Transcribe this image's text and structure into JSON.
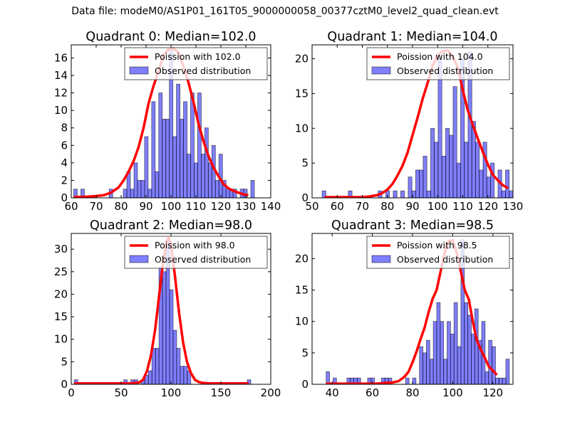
{
  "figure": {
    "suptitle": "Data file: modeM0/AS1P01_161T05_9000000058_00377cztM0_level2_quad_clean.evt"
  },
  "colors": {
    "bar_fill": "#0000ff",
    "bar_alpha": 0.5,
    "bar_edge": "#000000",
    "line": "#ff0000",
    "axes": "#000000",
    "legend_edge": "#555555"
  },
  "chart_data": [
    {
      "type": "bar",
      "title": "Quadrant 0: Median=102.0",
      "xlabel": "",
      "ylabel": "",
      "xlim": [
        60,
        140
      ],
      "ylim": [
        0,
        17.5
      ],
      "xticks": [
        60,
        70,
        80,
        90,
        100,
        110,
        120,
        130,
        140
      ],
      "yticks": [
        0,
        2,
        4,
        6,
        8,
        10,
        12,
        14,
        16
      ],
      "legend": {
        "position": "top-right",
        "entries": [
          "Poission with 102.0",
          "Observed distribution"
        ]
      },
      "grid": false,
      "histogram": {
        "name": "Observed distribution",
        "bin_start": 61,
        "bin_width": 1.42,
        "counts": [
          1,
          0,
          1,
          0,
          0,
          0,
          0,
          0,
          0,
          0,
          1,
          0,
          0,
          0,
          1,
          3,
          1,
          4,
          2,
          2,
          7,
          1,
          11,
          3,
          12,
          9,
          9,
          17,
          7,
          13,
          9,
          11,
          5,
          12,
          4,
          12,
          5,
          8,
          4,
          6,
          2,
          5,
          2,
          1,
          1,
          1,
          0,
          1,
          1,
          0,
          2
        ]
      },
      "poisson": {
        "name": "Poission with 102.0",
        "mean": 102.0,
        "x": [
          61,
          64,
          67,
          70,
          73,
          76,
          79,
          81,
          83,
          85,
          87,
          89,
          91,
          93,
          95,
          97,
          99,
          101,
          103,
          105,
          107,
          109,
          111,
          113,
          115,
          117,
          119,
          121,
          123,
          125,
          127,
          129,
          131
        ],
        "y": [
          0.1,
          0.1,
          0.15,
          0.2,
          0.3,
          0.6,
          1.2,
          2.0,
          3.0,
          4.2,
          5.8,
          8.0,
          10.8,
          12.8,
          14.5,
          16.3,
          17.0,
          17.1,
          16.6,
          15.0,
          13.2,
          11.0,
          8.5,
          6.5,
          4.8,
          3.5,
          2.5,
          1.6,
          1.1,
          0.8,
          0.6,
          0.4,
          0.3
        ]
      }
    },
    {
      "type": "bar",
      "title": "Quadrant 1: Median=104.0",
      "xlabel": "",
      "ylabel": "",
      "xlim": [
        50,
        130
      ],
      "ylim": [
        0,
        22
      ],
      "xticks": [
        50,
        60,
        70,
        80,
        90,
        100,
        110,
        120,
        130
      ],
      "yticks": [
        0,
        5,
        10,
        15,
        20
      ],
      "legend": {
        "position": "top-right",
        "entries": [
          "Poission with 104.0",
          "Observed distribution"
        ]
      },
      "grid": false,
      "histogram": {
        "name": "Observed distribution",
        "bin_start": 54,
        "bin_width": 1.49,
        "counts": [
          1,
          0,
          0,
          0,
          0,
          0,
          0,
          1,
          0,
          0,
          0,
          0,
          0,
          0,
          0,
          1,
          0,
          1,
          0,
          1,
          0,
          1,
          0,
          3,
          1,
          4,
          4,
          6,
          1,
          10,
          8,
          20,
          6,
          10,
          9,
          16,
          5,
          20,
          8,
          21,
          11,
          8,
          4,
          8,
          3,
          5,
          0,
          4,
          1,
          4,
          1,
          1
        ]
      },
      "poisson": {
        "name": "Poission with 104.0",
        "mean": 104.0,
        "x": [
          55,
          60,
          65,
          70,
          73,
          76,
          78,
          80,
          82,
          84,
          86,
          88,
          90,
          92,
          94,
          96,
          98,
          100,
          102,
          104,
          106,
          108,
          110,
          112,
          114,
          116,
          118,
          120,
          122,
          124,
          126,
          128
        ],
        "y": [
          0.1,
          0.1,
          0.1,
          0.1,
          0.2,
          0.4,
          0.7,
          1.2,
          2.0,
          3.2,
          4.6,
          6.5,
          9.0,
          11.5,
          14.2,
          16.5,
          19.0,
          20.5,
          21.1,
          21.2,
          20.3,
          18.8,
          15.5,
          12.6,
          10.5,
          8.5,
          6.6,
          4.8,
          3.3,
          2.5,
          1.8,
          1.4
        ]
      }
    },
    {
      "type": "bar",
      "title": "Quadrant 2: Median=98.0",
      "xlabel": "",
      "ylabel": "",
      "xlim": [
        0,
        200
      ],
      "ylim": [
        0,
        33.5
      ],
      "xticks": [
        0,
        50,
        100,
        150,
        200
      ],
      "yticks": [
        0,
        5,
        10,
        15,
        20,
        25,
        30
      ],
      "legend": {
        "position": "top-right",
        "entries": [
          "Poission with 98.0",
          "Observed distribution"
        ]
      },
      "grid": false,
      "histogram": {
        "name": "Observed distribution",
        "bin_start": 3,
        "bin_width": 3.54,
        "counts": [
          1,
          0,
          0,
          0,
          0,
          0,
          0,
          0,
          0,
          0,
          0,
          0,
          0,
          0,
          1,
          0,
          1,
          1,
          0,
          1,
          2,
          3,
          8,
          8,
          26,
          25,
          32,
          21,
          12,
          8,
          4,
          4,
          3,
          0,
          0,
          0,
          0,
          0,
          0,
          0,
          0,
          0,
          0,
          0,
          0,
          0,
          0,
          0,
          0,
          1
        ]
      },
      "poisson": {
        "name": "Poission with 98.0",
        "mean": 98.0,
        "x": [
          3,
          20,
          40,
          60,
          68,
          72,
          76,
          80,
          84,
          88,
          92,
          96,
          98,
          100,
          104,
          108,
          112,
          116,
          120,
          124,
          128,
          132,
          140,
          160,
          178
        ],
        "y": [
          0.2,
          0.2,
          0.2,
          0.2,
          0.4,
          1.0,
          3.0,
          6.5,
          12.0,
          19.5,
          27.0,
          32.0,
          32.5,
          31.0,
          24.0,
          16.0,
          9.5,
          5.0,
          2.5,
          1.0,
          0.5,
          0.3,
          0.2,
          0.2,
          0.2
        ]
      }
    },
    {
      "type": "bar",
      "title": "Quadrant 3: Median=98.5",
      "xlabel": "",
      "ylabel": "",
      "xlim": [
        30,
        130
      ],
      "ylim": [
        0,
        24
      ],
      "xticks": [
        40,
        60,
        80,
        100,
        120
      ],
      "yticks": [
        0,
        5,
        10,
        15,
        20
      ],
      "legend": {
        "position": "top-right",
        "entries": [
          "Poission with 98.5",
          "Observed distribution"
        ]
      },
      "grid": false,
      "histogram": {
        "name": "Observed distribution",
        "bin_start": 37,
        "bin_width": 1.72,
        "counts": [
          2,
          0,
          1,
          0,
          0,
          0,
          1,
          1,
          1,
          1,
          0,
          0,
          1,
          1,
          0,
          0,
          1,
          1,
          1,
          0,
          0,
          0,
          0,
          1,
          0,
          1,
          0,
          6,
          5,
          7,
          4,
          10,
          13,
          10,
          4,
          10,
          8,
          13,
          6,
          23,
          13,
          11,
          8,
          12,
          7,
          10,
          2,
          7,
          6,
          1,
          1,
          1,
          4
        ]
      },
      "poisson": {
        "name": "Poission with 98.5",
        "mean": 98.5,
        "x": [
          37,
          45,
          55,
          62,
          66,
          70,
          73,
          76,
          78,
          80,
          82,
          84,
          86,
          88,
          90,
          92,
          94,
          96,
          98,
          100,
          102,
          104,
          106,
          108,
          110,
          112,
          114,
          116,
          118,
          120,
          122
        ],
        "y": [
          0.1,
          0.1,
          0.1,
          0.1,
          0.2,
          0.3,
          0.5,
          1.2,
          2.0,
          3.5,
          5.2,
          7.2,
          9.0,
          11.5,
          13.6,
          15.0,
          18.0,
          21.0,
          22.8,
          22.9,
          21.0,
          18.0,
          15.0,
          13.5,
          10.0,
          7.0,
          5.5,
          4.2,
          2.8,
          2.2,
          1.5
        ]
      }
    }
  ]
}
